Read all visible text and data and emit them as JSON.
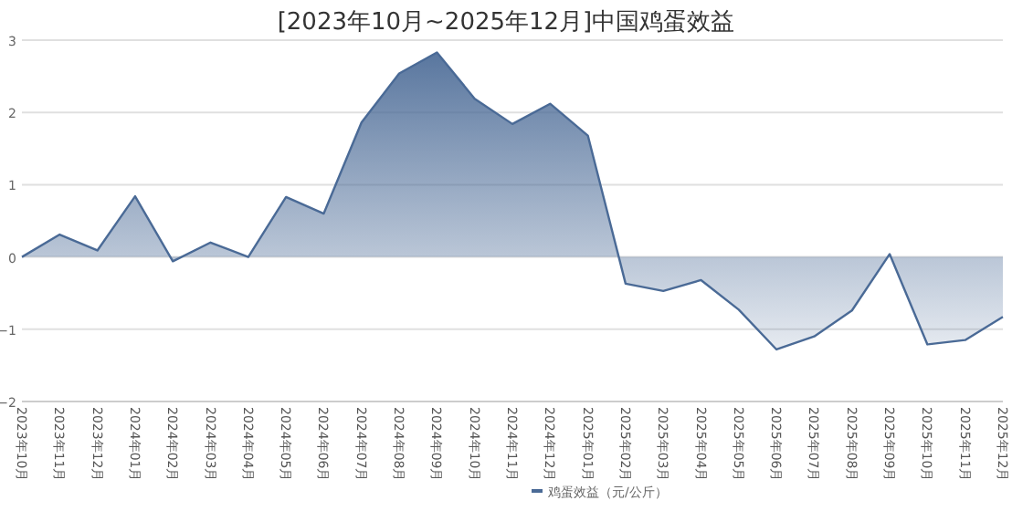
{
  "chart_data": {
    "type": "area",
    "title": "[2023年10月~2025年12月]中国鸡蛋效益",
    "categories": [
      "2023年10月",
      "2023年11月",
      "2023年12月",
      "2024年01月",
      "2024年02月",
      "2024年03月",
      "2024年04月",
      "2024年05月",
      "2024年06月",
      "2024年07月",
      "2024年08月",
      "2024年09月",
      "2024年10月",
      "2024年11月",
      "2024年12月",
      "2025年01月",
      "2025年02月",
      "2025年03月",
      "2025年04月",
      "2025年05月",
      "2025年06月",
      "2025年07月",
      "2025年08月",
      "2025年09月",
      "2025年10月",
      "2025年11月",
      "2025年12月"
    ],
    "series": [
      {
        "name": "鸡蛋效益（元/公斤）",
        "color": "#4a6a96",
        "values": [
          0,
          0.31,
          0.09,
          0.84,
          -0.06,
          0.2,
          0,
          0.83,
          0.6,
          1.86,
          2.54,
          2.83,
          2.19,
          1.84,
          2.12,
          1.68,
          -0.37,
          -0.47,
          -0.32,
          -0.73,
          -1.28,
          -1.1,
          -0.74,
          0.04,
          -1.21,
          -1.15,
          -0.83
        ]
      }
    ],
    "ylim": [
      -2,
      3
    ],
    "yticks": [
      -2,
      -1,
      0,
      1,
      2,
      3
    ],
    "grid": "y",
    "legend": "bottom",
    "marker": "none",
    "line_style": "solid"
  }
}
